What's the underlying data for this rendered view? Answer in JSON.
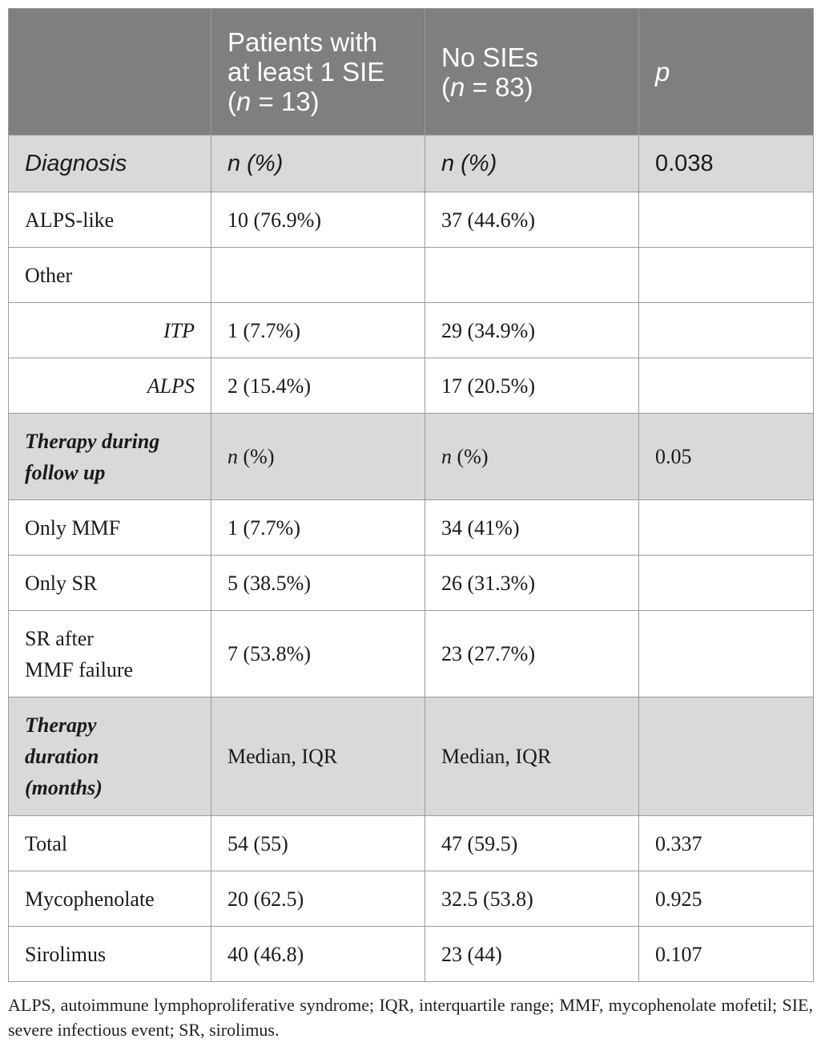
{
  "header": {
    "col1": "",
    "col2_line1": "Patients with",
    "col2_line2": "at least 1 SIE",
    "col2_n": "n",
    "col2_eq": " = 13)",
    "col3_line1": "No SIEs",
    "col3_n": "n",
    "col3_eq": " = 83)",
    "col4": "p"
  },
  "diagnosis": {
    "label": "Diagnosis",
    "col2": "n (%)",
    "col3": "n (%)",
    "p": "0.038",
    "rows": [
      {
        "label": "ALPS-like",
        "a": "10 (76.9%)",
        "b": "37 (44.6%)",
        "p": ""
      },
      {
        "label": "Other",
        "a": "",
        "b": "",
        "p": ""
      },
      {
        "label": "ITP",
        "a": "1 (7.7%)",
        "b": "29 (34.9%)",
        "p": ""
      },
      {
        "label": "ALPS",
        "a": "2 (15.4%)",
        "b": "17 (20.5%)",
        "p": ""
      }
    ]
  },
  "therapy": {
    "label_line1": "Therapy during",
    "label_line2": "follow up",
    "col2_n": "n",
    "col2_pct": " (%)",
    "col3_n": "n",
    "col3_pct": " (%)",
    "p": "0.05",
    "rows": [
      {
        "label": "Only MMF",
        "a": "1 (7.7%)",
        "b": "34 (41%)",
        "p": ""
      },
      {
        "label": "Only SR",
        "a": "5 (38.5%)",
        "b": "26 (31.3%)",
        "p": ""
      },
      {
        "label_line1": "SR after",
        "label_line2": "MMF failure",
        "a": "7 (53.8%)",
        "b": "23 (27.7%)",
        "p": ""
      }
    ]
  },
  "duration": {
    "label_line1": "Therapy",
    "label_line2": "duration",
    "label_line3": "(months)",
    "col2": "Median, IQR",
    "col3": "Median, IQR",
    "p": "",
    "rows": [
      {
        "label": "Total",
        "a": "54 (55)",
        "b": "47 (59.5)",
        "p": "0.337"
      },
      {
        "label": "Mycophenolate",
        "a": "20 (62.5)",
        "b": "32.5 (53.8)",
        "p": "0.925"
      },
      {
        "label": "Sirolimus",
        "a": "40 (46.8)",
        "b": "23 (44)",
        "p": "0.107"
      }
    ]
  },
  "footnote": "ALPS, autoimmune lymphoproliferative syndrome; IQR, interquartile range; MMF, mycophenolate mofetil; SIE, severe infectious event; SR, sirolimus.",
  "colors": {
    "header_bg": "#7f7f7f",
    "section_bg": "#d9d9d9",
    "border": "#9a9a9a"
  }
}
